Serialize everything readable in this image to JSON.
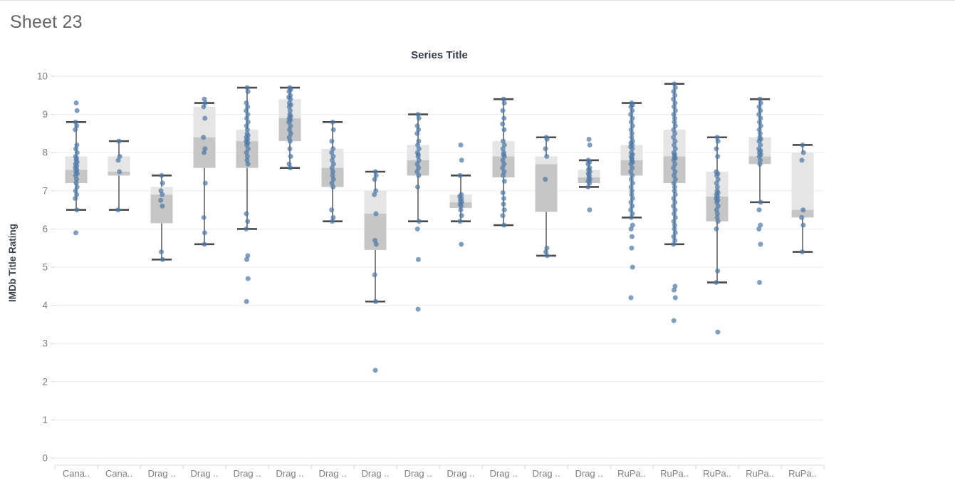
{
  "sheet": {
    "title": "Sheet 23"
  },
  "colors": {
    "dot": "#4e79a7",
    "box_upper": "#e5e5e5",
    "box_lower": "#c6c6c6",
    "whisker": "#4a4a4a",
    "gridline": "#ebebeb",
    "axis_line": "#d7d7d7",
    "tick_label": "#7b7f84",
    "chart_title": "#333c49",
    "y_axis_title": "#3a424c",
    "sheet_title": "#636669"
  },
  "chart_data": {
    "type": "boxplot",
    "title": "Series Title",
    "xlabel": "",
    "ylabel": "IMDb Title Rating",
    "ylim": [
      0,
      10
    ],
    "yticks": [
      0,
      1,
      2,
      3,
      4,
      5,
      6,
      7,
      8,
      9,
      10
    ],
    "grid": true,
    "legend": "none",
    "categories": [
      {
        "label": "Cana..",
        "whisker_low": 6.5,
        "q1": 7.2,
        "median": 7.55,
        "q3": 7.9,
        "whisker_high": 8.8,
        "points": [
          9.3,
          9.1,
          8.8,
          8.7,
          8.6,
          8.2,
          8.1,
          8.0,
          7.9,
          7.85,
          7.8,
          7.75,
          7.7,
          7.65,
          7.6,
          7.55,
          7.5,
          7.45,
          7.4,
          7.3,
          7.2,
          7.1,
          7.0,
          6.9,
          6.8,
          6.5,
          5.9
        ]
      },
      {
        "label": "Cana..",
        "whisker_low": 6.5,
        "q1": 7.4,
        "median": 7.5,
        "q3": 7.9,
        "whisker_high": 8.3,
        "points": [
          8.3,
          7.9,
          7.8,
          7.5,
          6.5
        ]
      },
      {
        "label": "Drag ..",
        "whisker_low": 5.2,
        "q1": 6.15,
        "median": 6.9,
        "q3": 7.1,
        "whisker_high": 7.4,
        "points": [
          7.4,
          7.2,
          7.0,
          6.9,
          6.75,
          6.6,
          5.4,
          5.2
        ]
      },
      {
        "label": "Drag ..",
        "whisker_low": 5.6,
        "q1": 7.6,
        "median": 8.4,
        "q3": 9.2,
        "whisker_high": 9.3,
        "points": [
          9.4,
          9.3,
          9.2,
          8.9,
          8.4,
          8.1,
          8.0,
          7.2,
          6.3,
          5.9,
          5.6
        ]
      },
      {
        "label": "Drag ..",
        "whisker_low": 6.0,
        "q1": 7.6,
        "median": 8.3,
        "q3": 8.6,
        "whisker_high": 9.7,
        "points": [
          9.7,
          9.6,
          9.3,
          9.2,
          9.1,
          9.0,
          8.9,
          8.8,
          8.7,
          8.6,
          8.5,
          8.45,
          8.4,
          8.35,
          8.3,
          8.25,
          8.2,
          8.1,
          8.0,
          7.9,
          7.8,
          7.7,
          6.4,
          6.2,
          6.0,
          5.3,
          5.2,
          4.7,
          4.1
        ]
      },
      {
        "label": "Drag ..",
        "whisker_low": 7.6,
        "q1": 8.3,
        "median": 8.9,
        "q3": 9.4,
        "whisker_high": 9.7,
        "points": [
          9.7,
          9.65,
          9.6,
          9.5,
          9.45,
          9.4,
          9.3,
          9.25,
          9.2,
          9.1,
          9.0,
          8.95,
          8.9,
          8.85,
          8.8,
          8.7,
          8.6,
          8.5,
          8.4,
          8.3,
          8.1,
          7.9,
          7.7,
          7.6
        ]
      },
      {
        "label": "Drag ..",
        "whisker_low": 6.2,
        "q1": 7.1,
        "median": 7.6,
        "q3": 8.1,
        "whisker_high": 8.8,
        "points": [
          8.8,
          8.6,
          8.3,
          8.1,
          8.0,
          7.9,
          7.8,
          7.7,
          7.6,
          7.5,
          7.4,
          7.3,
          7.2,
          7.1,
          6.5,
          6.3,
          6.2
        ]
      },
      {
        "label": "Drag ..",
        "whisker_low": 4.1,
        "q1": 5.45,
        "median": 6.4,
        "q3": 7.0,
        "whisker_high": 7.5,
        "points": [
          7.5,
          7.4,
          7.3,
          7.0,
          6.9,
          6.4,
          5.7,
          5.6,
          4.8,
          4.1,
          2.3
        ]
      },
      {
        "label": "Drag ..",
        "whisker_low": 6.2,
        "q1": 7.4,
        "median": 7.8,
        "q3": 8.2,
        "whisker_high": 9.0,
        "points": [
          9.0,
          8.9,
          8.7,
          8.6,
          8.5,
          8.3,
          8.2,
          8.1,
          8.0,
          7.95,
          7.9,
          7.8,
          7.7,
          7.6,
          7.5,
          7.4,
          7.1,
          6.2,
          6.0,
          5.2,
          3.9
        ]
      },
      {
        "label": "Drag ..",
        "whisker_low": 6.2,
        "q1": 6.55,
        "median": 6.7,
        "q3": 6.9,
        "whisker_high": 7.4,
        "points": [
          8.2,
          7.8,
          7.4,
          6.9,
          6.85,
          6.8,
          6.75,
          6.7,
          6.65,
          6.6,
          6.5,
          6.35,
          6.2,
          5.6
        ]
      },
      {
        "label": "Drag ..",
        "whisker_low": 6.1,
        "q1": 7.35,
        "median": 7.9,
        "q3": 8.3,
        "whisker_high": 9.4,
        "points": [
          9.4,
          9.3,
          9.1,
          8.9,
          8.75,
          8.6,
          8.3,
          8.2,
          8.1,
          8.0,
          7.95,
          7.9,
          7.8,
          7.7,
          7.6,
          7.5,
          7.4,
          7.25,
          6.95,
          6.8,
          6.65,
          6.5,
          6.35,
          6.1
        ]
      },
      {
        "label": "Drag ..",
        "whisker_low": 5.3,
        "q1": 6.45,
        "median": 7.7,
        "q3": 7.9,
        "whisker_high": 8.4,
        "points": [
          8.4,
          8.35,
          8.1,
          7.9,
          7.3,
          5.5,
          5.4,
          5.3
        ]
      },
      {
        "label": "Drag ..",
        "whisker_low": 7.1,
        "q1": 7.2,
        "median": 7.35,
        "q3": 7.55,
        "whisker_high": 7.8,
        "points": [
          8.35,
          8.2,
          7.8,
          7.75,
          7.7,
          7.6,
          7.55,
          7.5,
          7.45,
          7.4,
          7.35,
          7.3,
          7.25,
          7.2,
          7.1,
          6.5
        ]
      },
      {
        "label": "RuPa..",
        "whisker_low": 6.3,
        "q1": 7.4,
        "median": 7.8,
        "q3": 8.2,
        "whisker_high": 9.3,
        "points": [
          9.3,
          9.25,
          9.2,
          9.1,
          9.0,
          8.9,
          8.8,
          8.7,
          8.6,
          8.5,
          8.4,
          8.3,
          8.25,
          8.2,
          8.15,
          8.1,
          8.0,
          7.95,
          7.9,
          7.85,
          7.8,
          7.75,
          7.7,
          7.6,
          7.5,
          7.4,
          7.3,
          7.2,
          7.1,
          7.0,
          6.9,
          6.8,
          6.7,
          6.6,
          6.5,
          6.4,
          6.3,
          6.1,
          6.0,
          5.8,
          5.5,
          5.0,
          4.2
        ]
      },
      {
        "label": "RuPa..",
        "whisker_low": 5.6,
        "q1": 7.2,
        "median": 7.9,
        "q3": 8.6,
        "whisker_high": 9.8,
        "points": [
          9.8,
          9.7,
          9.6,
          9.5,
          9.4,
          9.3,
          9.2,
          9.1,
          9.0,
          8.9,
          8.8,
          8.7,
          8.6,
          8.5,
          8.4,
          8.3,
          8.2,
          8.1,
          8.0,
          7.95,
          7.9,
          7.85,
          7.8,
          7.7,
          7.6,
          7.5,
          7.4,
          7.3,
          7.2,
          7.1,
          7.0,
          6.9,
          6.8,
          6.7,
          6.6,
          6.5,
          6.4,
          6.3,
          6.2,
          6.1,
          6.0,
          5.9,
          5.8,
          5.7,
          5.6,
          4.5,
          4.4,
          4.2,
          3.6
        ]
      },
      {
        "label": "RuPa..",
        "whisker_low": 4.6,
        "q1": 6.2,
        "median": 6.85,
        "q3": 7.5,
        "whisker_high": 8.4,
        "points": [
          8.4,
          8.3,
          8.1,
          7.9,
          7.5,
          7.45,
          7.4,
          7.3,
          7.2,
          7.1,
          7.0,
          6.95,
          6.9,
          6.85,
          6.8,
          6.75,
          6.7,
          6.6,
          6.5,
          6.4,
          6.3,
          6.2,
          6.0,
          4.9,
          4.6,
          3.3
        ]
      },
      {
        "label": "RuPa..",
        "whisker_low": 6.7,
        "q1": 7.7,
        "median": 7.9,
        "q3": 8.4,
        "whisker_high": 9.4,
        "points": [
          9.4,
          9.3,
          9.2,
          9.1,
          9.0,
          8.9,
          8.8,
          8.7,
          8.6,
          8.5,
          8.4,
          8.35,
          8.3,
          8.2,
          8.1,
          8.05,
          8.0,
          7.95,
          7.9,
          7.8,
          7.7,
          6.7,
          6.5,
          6.1,
          6.0,
          5.6,
          4.6
        ]
      },
      {
        "label": "RuPa..",
        "whisker_low": 5.4,
        "q1": 6.3,
        "median": 6.5,
        "q3": 8.0,
        "whisker_high": 8.2,
        "points": [
          8.2,
          8.0,
          7.8,
          6.5,
          6.3,
          6.1,
          5.4
        ]
      }
    ]
  }
}
